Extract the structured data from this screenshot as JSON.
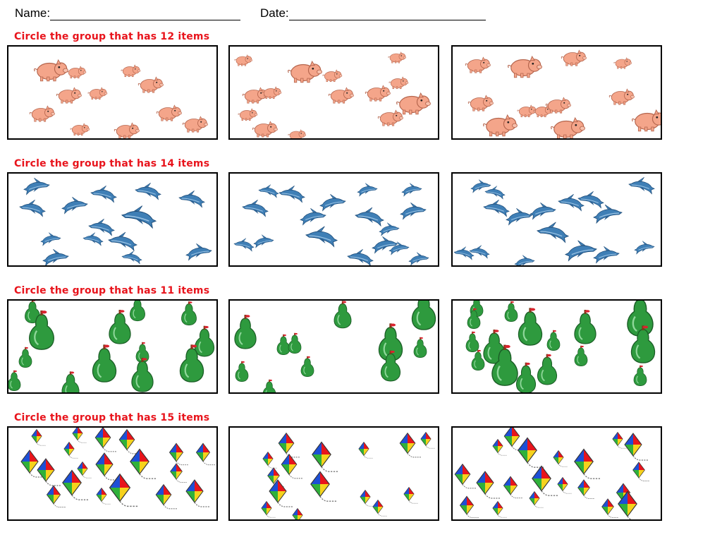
{
  "header": {
    "name_label": "Name:",
    "date_label": "Date:"
  },
  "sections": [
    {
      "instruction": "Circle the group that has 12 items",
      "item": "pig-icon"
    },
    {
      "instruction": "Circle the group that has 14 items",
      "item": "dolphin-icon"
    },
    {
      "instruction": "Circle the group that has 11 items",
      "item": "pear-icon"
    },
    {
      "instruction": "Circle the group that has 15 items",
      "item": "kite-icon"
    }
  ],
  "colors": {
    "instruction": "#e8141c",
    "pig": "#f4a58a",
    "dolphin": "#3f7fb6",
    "pear": "#2e9a3e",
    "kite": [
      "#e8141c",
      "#1d4fd6",
      "#2fb13a",
      "#f6d21c"
    ]
  }
}
